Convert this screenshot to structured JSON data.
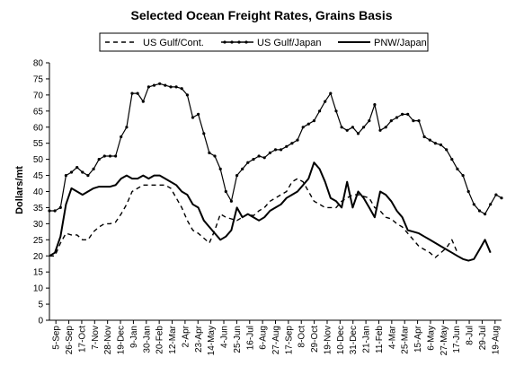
{
  "chart_data": {
    "type": "line",
    "title": "Selected Ocean Freight Rates, Grains Basis",
    "ylabel": "Dollars/mt",
    "xlabel": "",
    "ylim": [
      0,
      80
    ],
    "yticks": [
      0,
      5,
      10,
      15,
      20,
      25,
      30,
      35,
      40,
      45,
      50,
      55,
      60,
      65,
      70,
      75,
      80
    ],
    "grid": false,
    "legend_position": "top",
    "x_tick_labels": [
      "5-Sep",
      "26-Sep",
      "17-Oct",
      "7-Nov",
      "28-Nov",
      "19-Dec",
      "9-Jan",
      "30-Jan",
      "20-Feb",
      "12-Mar",
      "2-Apr",
      "23-Apr",
      "14-May",
      "4-Jun",
      "25-Jun",
      "16-Jul",
      "6-Aug",
      "27-Aug",
      "17-Sep",
      "8-Oct",
      "29-Oct",
      "19-Nov",
      "10-Dec",
      "31-Dec",
      "21-Jan",
      "11-Feb",
      "4-Mar",
      "25-Mar",
      "15-Apr",
      "6-May",
      "27-May",
      "17-Jun",
      "8-Jul",
      "29-Jul",
      "19-Aug"
    ],
    "series": [
      {
        "name": "US Gulf/Cont.",
        "color": "#000000",
        "style": "dashed",
        "points": [
          [
            0,
            20
          ],
          [
            1,
            20
          ],
          [
            2,
            24
          ],
          [
            3,
            27
          ],
          [
            4,
            26.5
          ],
          [
            5,
            26.5
          ],
          [
            6,
            25
          ],
          [
            7,
            25
          ],
          [
            8,
            27.5
          ],
          [
            9,
            29
          ],
          [
            10,
            30
          ],
          [
            11,
            30
          ],
          [
            12,
            30.5
          ],
          [
            13,
            33
          ],
          [
            14,
            36
          ],
          [
            15,
            40
          ],
          [
            16,
            41
          ],
          [
            17,
            42
          ],
          [
            18,
            42
          ],
          [
            19,
            42
          ],
          [
            20,
            42
          ],
          [
            21,
            42
          ],
          [
            22,
            41
          ],
          [
            23,
            38
          ],
          [
            24,
            35
          ],
          [
            25,
            31
          ],
          [
            26,
            28
          ],
          [
            27,
            27
          ],
          [
            28,
            25.5
          ],
          [
            29,
            24
          ],
          [
            30,
            28
          ],
          [
            31,
            33
          ],
          [
            32,
            32
          ],
          [
            33,
            31.5
          ],
          [
            34,
            31
          ],
          [
            35,
            32
          ],
          [
            36,
            33
          ],
          [
            37,
            32.5
          ],
          [
            38,
            34
          ],
          [
            39,
            35
          ],
          [
            40,
            37
          ],
          [
            41,
            38
          ],
          [
            42,
            39
          ],
          [
            43,
            40
          ],
          [
            44,
            43
          ],
          [
            45,
            44
          ],
          [
            46,
            43
          ],
          [
            47,
            40
          ],
          [
            48,
            37
          ],
          [
            49,
            36
          ],
          [
            50,
            35
          ],
          [
            51,
            35
          ],
          [
            52,
            35
          ],
          [
            53,
            37
          ],
          [
            54,
            38
          ],
          [
            55,
            39
          ],
          [
            56,
            39
          ],
          [
            57,
            38.5
          ],
          [
            58,
            38
          ],
          [
            59,
            35
          ],
          [
            60,
            34
          ],
          [
            61,
            32
          ],
          [
            62,
            31.5
          ],
          [
            63,
            30
          ],
          [
            64,
            29
          ],
          [
            65,
            27
          ],
          [
            66,
            25
          ],
          [
            67,
            23
          ],
          [
            68,
            22
          ],
          [
            69,
            21
          ],
          [
            70,
            19.5
          ],
          [
            71,
            21
          ],
          [
            72,
            22.5
          ],
          [
            73,
            25
          ],
          [
            74,
            21
          ]
        ]
      },
      {
        "name": "US Gulf/Japan",
        "color": "#000000",
        "style": "line-with-small-markers",
        "points": [
          [
            0,
            34
          ],
          [
            1,
            34
          ],
          [
            2,
            35
          ],
          [
            3,
            45
          ],
          [
            4,
            46
          ],
          [
            5,
            47.5
          ],
          [
            6,
            46
          ],
          [
            7,
            45
          ],
          [
            8,
            47
          ],
          [
            9,
            50
          ],
          [
            10,
            51
          ],
          [
            11,
            51
          ],
          [
            12,
            51
          ],
          [
            13,
            57
          ],
          [
            14,
            60
          ],
          [
            15,
            70.5
          ],
          [
            16,
            70.5
          ],
          [
            17,
            68
          ],
          [
            18,
            72.5
          ],
          [
            19,
            73
          ],
          [
            20,
            73.5
          ],
          [
            21,
            73
          ],
          [
            22,
            72.5
          ],
          [
            23,
            72.5
          ],
          [
            24,
            72
          ],
          [
            25,
            70
          ],
          [
            26,
            63
          ],
          [
            27,
            64
          ],
          [
            28,
            58
          ],
          [
            29,
            52
          ],
          [
            30,
            51
          ],
          [
            31,
            47
          ],
          [
            32,
            40
          ],
          [
            33,
            37
          ],
          [
            34,
            45
          ],
          [
            35,
            47
          ],
          [
            36,
            49
          ],
          [
            37,
            50
          ],
          [
            38,
            51
          ],
          [
            39,
            50.5
          ],
          [
            40,
            52
          ],
          [
            41,
            53
          ],
          [
            42,
            53
          ],
          [
            43,
            54
          ],
          [
            44,
            55
          ],
          [
            45,
            56
          ],
          [
            46,
            60
          ],
          [
            47,
            61
          ],
          [
            48,
            62
          ],
          [
            49,
            65
          ],
          [
            50,
            68
          ],
          [
            51,
            70.5
          ],
          [
            52,
            65
          ],
          [
            53,
            60
          ],
          [
            54,
            59
          ],
          [
            55,
            60
          ],
          [
            56,
            58
          ],
          [
            57,
            60
          ],
          [
            58,
            62
          ],
          [
            59,
            67
          ],
          [
            60,
            59
          ],
          [
            61,
            60
          ],
          [
            62,
            62
          ],
          [
            63,
            63
          ],
          [
            64,
            64
          ],
          [
            65,
            64
          ],
          [
            66,
            62
          ],
          [
            67,
            62
          ],
          [
            68,
            57
          ],
          [
            69,
            56
          ],
          [
            70,
            55
          ],
          [
            71,
            54.5
          ],
          [
            72,
            53
          ],
          [
            73,
            50
          ],
          [
            74,
            47
          ],
          [
            75,
            45
          ],
          [
            76,
            40
          ],
          [
            77,
            36
          ],
          [
            78,
            34
          ],
          [
            79,
            33
          ],
          [
            80,
            36
          ],
          [
            81,
            39
          ],
          [
            82,
            38
          ]
        ]
      },
      {
        "name": "PNW/Japan",
        "color": "#000000",
        "style": "solid",
        "points": [
          [
            0,
            20
          ],
          [
            1,
            21
          ],
          [
            2,
            26
          ],
          [
            3,
            36
          ],
          [
            4,
            41
          ],
          [
            5,
            40
          ],
          [
            6,
            39
          ],
          [
            7,
            40
          ],
          [
            8,
            41
          ],
          [
            9,
            41.5
          ],
          [
            10,
            41.5
          ],
          [
            11,
            41.5
          ],
          [
            12,
            42
          ],
          [
            13,
            44
          ],
          [
            14,
            45
          ],
          [
            15,
            44
          ],
          [
            16,
            44
          ],
          [
            17,
            45
          ],
          [
            18,
            44
          ],
          [
            19,
            45
          ],
          [
            20,
            45
          ],
          [
            21,
            44
          ],
          [
            22,
            43
          ],
          [
            23,
            42
          ],
          [
            24,
            40
          ],
          [
            25,
            39
          ],
          [
            26,
            36
          ],
          [
            27,
            35
          ],
          [
            28,
            31
          ],
          [
            29,
            29
          ],
          [
            30,
            27
          ],
          [
            31,
            25
          ],
          [
            32,
            26
          ],
          [
            33,
            28
          ],
          [
            34,
            35
          ],
          [
            35,
            32
          ],
          [
            36,
            33
          ],
          [
            37,
            32
          ],
          [
            38,
            31
          ],
          [
            39,
            32
          ],
          [
            40,
            34
          ],
          [
            41,
            35
          ],
          [
            42,
            36
          ],
          [
            43,
            38
          ],
          [
            44,
            39
          ],
          [
            45,
            40
          ],
          [
            46,
            42
          ],
          [
            47,
            44
          ],
          [
            48,
            49
          ],
          [
            49,
            47
          ],
          [
            50,
            43
          ],
          [
            51,
            38
          ],
          [
            52,
            37
          ],
          [
            53,
            35
          ],
          [
            54,
            43
          ],
          [
            55,
            35
          ],
          [
            56,
            40
          ],
          [
            57,
            38
          ],
          [
            58,
            35
          ],
          [
            59,
            32
          ],
          [
            60,
            40
          ],
          [
            61,
            39
          ],
          [
            62,
            37
          ],
          [
            63,
            34
          ],
          [
            64,
            32
          ],
          [
            65,
            28
          ],
          [
            66,
            27.5
          ],
          [
            67,
            27
          ],
          [
            68,
            26
          ],
          [
            69,
            25
          ],
          [
            70,
            24
          ],
          [
            71,
            23
          ],
          [
            72,
            22
          ],
          [
            73,
            21
          ],
          [
            74,
            20
          ],
          [
            75,
            19
          ],
          [
            76,
            18.5
          ],
          [
            77,
            19
          ],
          [
            78,
            22
          ],
          [
            79,
            25
          ],
          [
            80,
            21
          ]
        ]
      }
    ]
  }
}
